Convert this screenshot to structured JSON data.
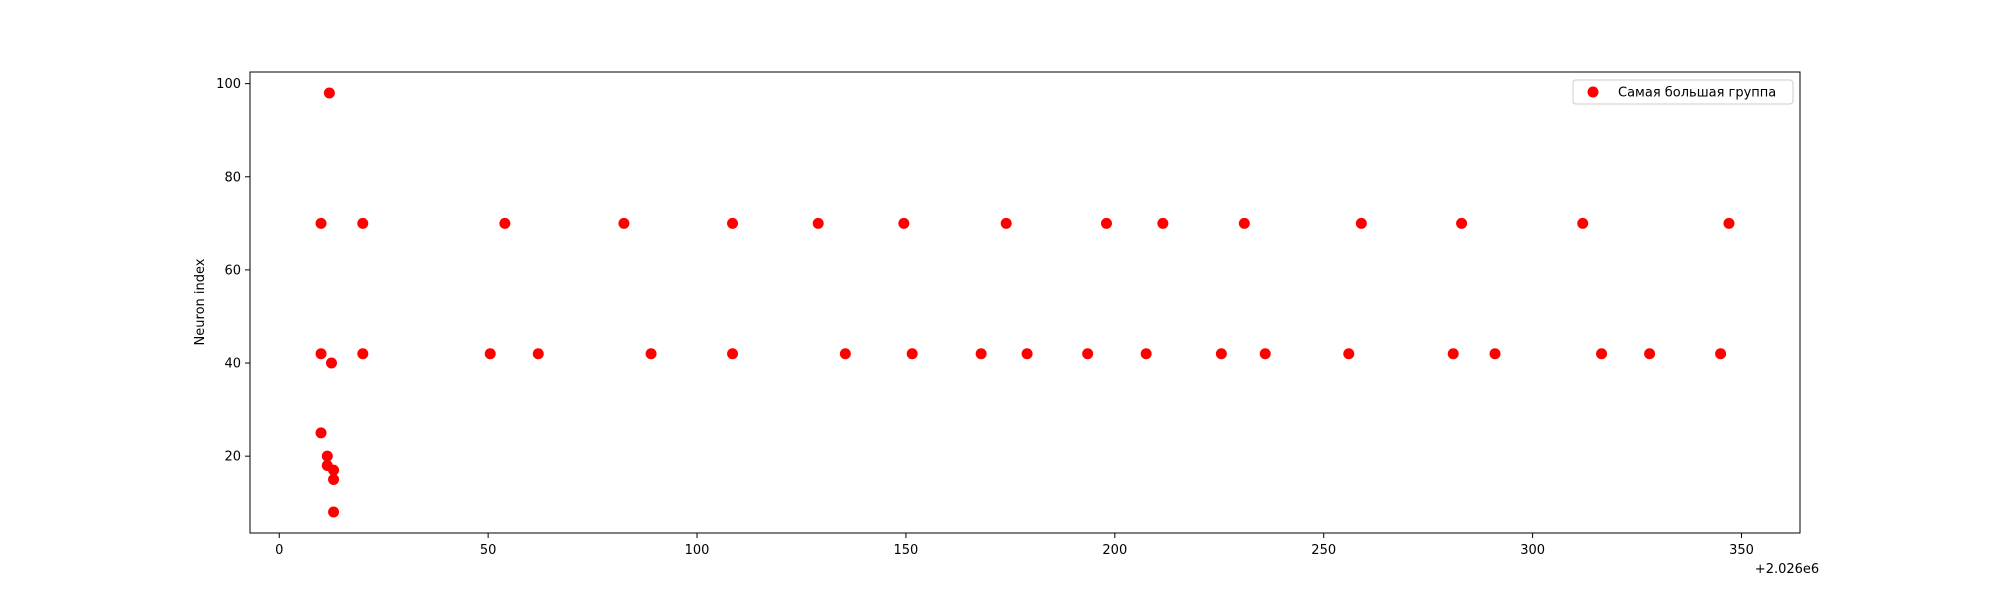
{
  "chart_data": {
    "type": "scatter",
    "title": "",
    "xlabel": "",
    "ylabel": "Neuron index",
    "x_offset_label": "+2.026e6",
    "xlim": [
      -7,
      364
    ],
    "ylim": [
      3.5,
      102.5
    ],
    "x_ticks": [
      0,
      50,
      100,
      150,
      200,
      250,
      300,
      350
    ],
    "x_tick_labels": [
      "0",
      "50",
      "100",
      "150",
      "200",
      "250",
      "300",
      "350"
    ],
    "y_ticks": [
      20,
      40,
      60,
      80,
      100
    ],
    "y_tick_labels": [
      "20",
      "40",
      "60",
      "80",
      "100"
    ],
    "grid": false,
    "legend_position": "upper right",
    "series": [
      {
        "name": "Самая большая группа",
        "color": "#ff0000",
        "marker": "circle",
        "points": [
          [
            10,
            70
          ],
          [
            10,
            42
          ],
          [
            10,
            25
          ],
          [
            11.5,
            20
          ],
          [
            11.5,
            18
          ],
          [
            12,
            98
          ],
          [
            12.5,
            40
          ],
          [
            13,
            17
          ],
          [
            13,
            15
          ],
          [
            13,
            8
          ],
          [
            20,
            70
          ],
          [
            20,
            42
          ],
          [
            50.5,
            42
          ],
          [
            54,
            70
          ],
          [
            62,
            42
          ],
          [
            82.5,
            70
          ],
          [
            89,
            42
          ],
          [
            108.5,
            70
          ],
          [
            108.5,
            42
          ],
          [
            129,
            70
          ],
          [
            135.5,
            42
          ],
          [
            149.5,
            70
          ],
          [
            151.5,
            42
          ],
          [
            168,
            42
          ],
          [
            174,
            70
          ],
          [
            179,
            42
          ],
          [
            193.5,
            42
          ],
          [
            198,
            70
          ],
          [
            207.5,
            42
          ],
          [
            211.5,
            70
          ],
          [
            225.5,
            42
          ],
          [
            231,
            70
          ],
          [
            236,
            42
          ],
          [
            256,
            42
          ],
          [
            259,
            70
          ],
          [
            281,
            42
          ],
          [
            283,
            70
          ],
          [
            291,
            42
          ],
          [
            312,
            70
          ],
          [
            316.5,
            42
          ],
          [
            328,
            42
          ],
          [
            345,
            42
          ],
          [
            347,
            70
          ]
        ]
      }
    ]
  }
}
